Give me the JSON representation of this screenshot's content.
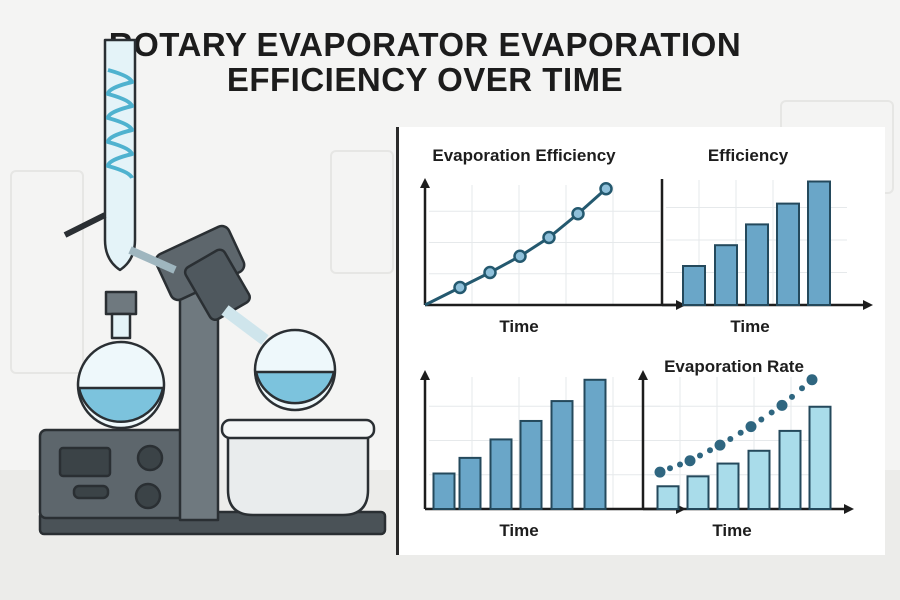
{
  "title": {
    "line1": "ROTARY EVAPORATOR EVAPORATION",
    "line2": "EFFICIENCY OVER TIME"
  },
  "colors": {
    "bar": "#6aa6c8",
    "bar_light": "#a9dcea",
    "line": "#24596f",
    "marker": "#8fc0da",
    "dot": "#2f6680",
    "axis": "#1d1d1d"
  },
  "chart_data": [
    {
      "type": "line",
      "title": "Evaporation Efficiency",
      "xlabel": "Time",
      "ylabel": "",
      "ylim": [
        0,
        100
      ],
      "x": [
        0,
        1,
        2,
        3,
        4,
        5,
        6
      ],
      "values": [
        0,
        14,
        26,
        39,
        54,
        73,
        93
      ],
      "grid": true
    },
    {
      "type": "bar",
      "title": "Efficiency",
      "xlabel": "Time",
      "ylabel": "",
      "ylim": [
        0,
        100
      ],
      "categories": [
        "1",
        "2",
        "3",
        "4",
        "5"
      ],
      "values": [
        30,
        46,
        62,
        78,
        95
      ],
      "grid": true
    },
    {
      "type": "bar",
      "title": "",
      "xlabel": "Time",
      "ylabel": "",
      "ylim": [
        0,
        100
      ],
      "categories": [
        "1",
        "2",
        "3",
        "4",
        "5",
        "6"
      ],
      "values": [
        25,
        36,
        49,
        62,
        76,
        91
      ],
      "grid": true
    },
    {
      "type": "bar",
      "title": "Evaporation Rate",
      "xlabel": "Time",
      "ylabel": "",
      "ylim": [
        0,
        100
      ],
      "categories": [
        "1",
        "2",
        "3",
        "4",
        "5",
        "6"
      ],
      "series": [
        {
          "name": "bars",
          "values": [
            16,
            23,
            32,
            41,
            55,
            72
          ]
        },
        {
          "name": "dots",
          "values": [
            26,
            34,
            45,
            58,
            73,
            91
          ]
        }
      ],
      "grid": true
    }
  ]
}
